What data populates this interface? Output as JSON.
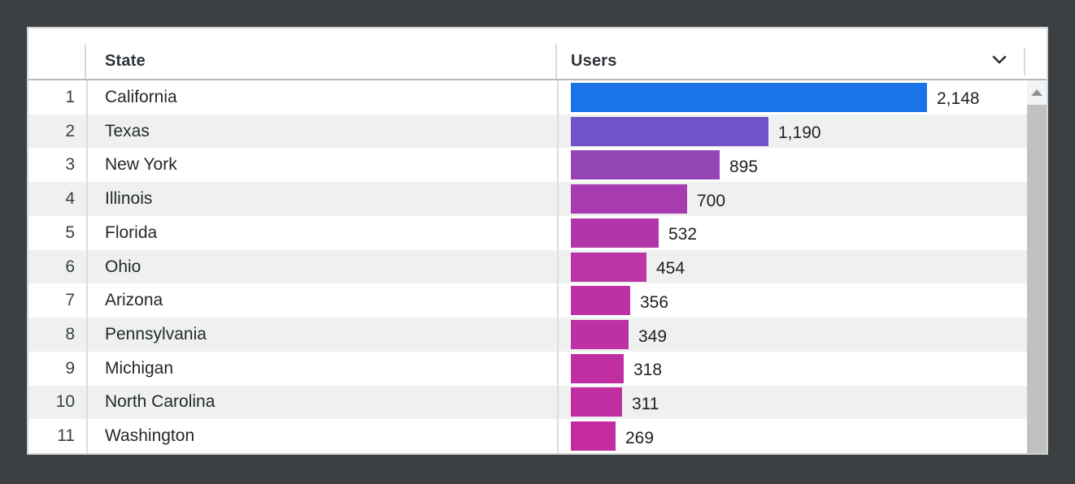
{
  "colors": {
    "surround_background": "#3c4043",
    "card_background": "#ffffff",
    "row_stripe": "#eff1f1",
    "header_divider": "#b6babd",
    "column_divider": "#dadcde",
    "scroll_thumb": "#c1c1c1",
    "scroll_button_bg": "#f1f3f4"
  },
  "table": {
    "columns": {
      "rank_label": "",
      "state_label": "State",
      "users_label": "Users"
    },
    "rows": [
      {
        "rank": "1",
        "state": "California",
        "users": 2148,
        "users_display": "2,148",
        "bar_color": "#1a73e8"
      },
      {
        "rank": "2",
        "state": "Texas",
        "users": 1190,
        "users_display": "1,190",
        "bar_color": "#7252c8"
      },
      {
        "rank": "3",
        "state": "New York",
        "users": 895,
        "users_display": "895",
        "bar_color": "#9445b5"
      },
      {
        "rank": "4",
        "state": "Illinois",
        "users": 700,
        "users_display": "700",
        "bar_color": "#a73bb0"
      },
      {
        "rank": "5",
        "state": "Florida",
        "users": 532,
        "users_display": "532",
        "bar_color": "#b136aa"
      },
      {
        "rank": "6",
        "state": "Ohio",
        "users": 454,
        "users_display": "454",
        "bar_color": "#bb35a8"
      },
      {
        "rank": "7",
        "state": "Arizona",
        "users": 356,
        "users_display": "356",
        "bar_color": "#bd31a5"
      },
      {
        "rank": "8",
        "state": "Pennsylvania",
        "users": 349,
        "users_display": "349",
        "bar_color": "#be31a4"
      },
      {
        "rank": "9",
        "state": "Michigan",
        "users": 318,
        "users_display": "318",
        "bar_color": "#c02fa2"
      },
      {
        "rank": "10",
        "state": "North Carolina",
        "users": 311,
        "users_display": "311",
        "bar_color": "#c12ea1"
      },
      {
        "rank": "11",
        "state": "Washington",
        "users": 269,
        "users_display": "269",
        "bar_color": "#c42b9e"
      }
    ]
  },
  "icons": {
    "sort": "chevron-down-icon",
    "scroll_up": "triangle-up-icon"
  },
  "chart_data": {
    "type": "bar",
    "orientation": "horizontal",
    "categories": [
      "California",
      "Texas",
      "New York",
      "Illinois",
      "Florida",
      "Ohio",
      "Arizona",
      "Pennsylvania",
      "Michigan",
      "North Carolina",
      "Washington"
    ],
    "values": [
      2148,
      1190,
      895,
      700,
      532,
      454,
      356,
      349,
      318,
      311,
      269
    ],
    "series_label": "Users",
    "value_labels": [
      "2,148",
      "1,190",
      "895",
      "700",
      "532",
      "454",
      "356",
      "349",
      "318",
      "311",
      "269"
    ],
    "color_scale": [
      "#1a73e8",
      "#c42b9e"
    ],
    "legend": "none",
    "grid": "off"
  }
}
